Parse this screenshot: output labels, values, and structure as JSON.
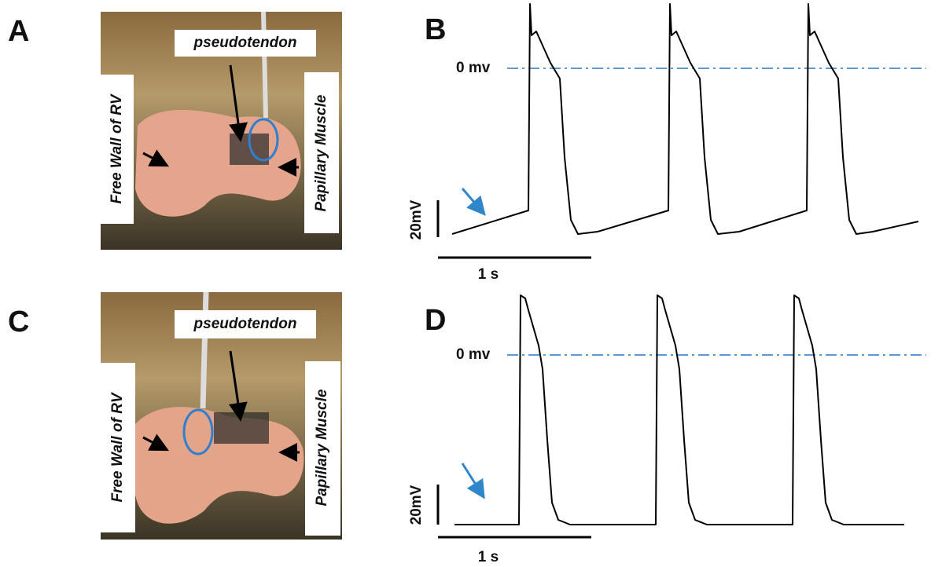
{
  "panels": [
    {
      "label": "A",
      "top_label": "pseudotendon",
      "left_label": "Free Wall of RV",
      "right_label": "Papillary Muscle"
    },
    {
      "label": "B",
      "zero_label": "0 mv",
      "voltage_scale": "20mV",
      "time_scale": "1 s"
    },
    {
      "label": "C",
      "top_label": "pseudotendon",
      "left_label": "Free Wall of RV",
      "right_label": "Papillary Muscle"
    },
    {
      "label": "D",
      "zero_label": "0 mv",
      "voltage_scale": "20mV",
      "time_scale": "1 s"
    }
  ]
}
